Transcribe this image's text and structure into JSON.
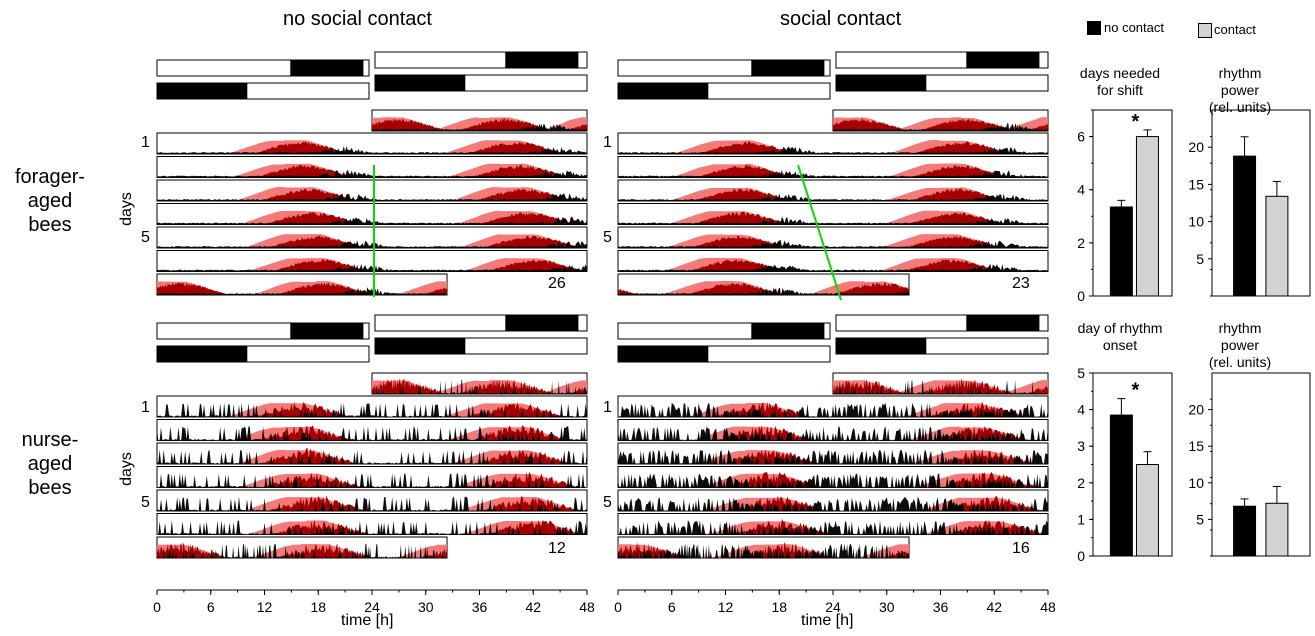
{
  "column_titles": {
    "left": "no social contact",
    "right": "social contact"
  },
  "row_labels": {
    "top": "forager-\naged\nbees",
    "bottom": "nurse-\naged\nbees"
  },
  "days_axis": {
    "label": "days",
    "ticks": [
      "1",
      "5"
    ]
  },
  "time_axis": {
    "label": "time [h]",
    "ticks": [
      "0",
      "6",
      "12",
      "18",
      "24",
      "30",
      "36",
      "42",
      "48"
    ]
  },
  "actogram_ids": {
    "forager_no_contact": "26",
    "forager_contact": "23",
    "nurse_no_contact": "12",
    "nurse_contact": "16"
  },
  "legend": {
    "no_contact": "no contact",
    "contact": "contact"
  },
  "colors": {
    "no_contact_fill": "#000000",
    "contact_fill": "#d3d3d3",
    "temperature": "#f47a7a",
    "activity_overlap": "#a50000",
    "activity": "#000000",
    "shift_line": "#00e000"
  },
  "chart_data": [
    {
      "type": "bar",
      "title": "days needed\nfor shift",
      "categories": [
        "no contact",
        "contact"
      ],
      "values": [
        3.35,
        6.0
      ],
      "error": [
        0.25,
        0.25
      ],
      "yticks": [
        "0",
        "2",
        "4",
        "6"
      ],
      "ylim": [
        0,
        7
      ],
      "significance": "*"
    },
    {
      "type": "bar",
      "title": "rhythm\npower\n(rel. units)",
      "categories": [
        "no contact",
        "contact"
      ],
      "values": [
        18.8,
        13.4
      ],
      "error": [
        2.6,
        2.0
      ],
      "yticks": [
        "5",
        "10",
        "15",
        "20"
      ],
      "ylim": [
        0,
        25
      ]
    },
    {
      "type": "bar",
      "title": "day of rhythm\nonset",
      "categories": [
        "no contact",
        "contact"
      ],
      "values": [
        3.85,
        2.5
      ],
      "error": [
        0.45,
        0.35
      ],
      "yticks": [
        "0",
        "1",
        "2",
        "3",
        "4",
        "5"
      ],
      "ylim": [
        0,
        5
      ],
      "significance": "*"
    },
    {
      "type": "bar",
      "title": "rhythm\npower\n(rel. units)",
      "categories": [
        "no contact",
        "contact"
      ],
      "values": [
        6.8,
        7.2
      ],
      "error": [
        1.0,
        2.3
      ],
      "yticks": [
        "5",
        "10",
        "15",
        "20"
      ],
      "ylim": [
        0,
        25
      ]
    }
  ]
}
